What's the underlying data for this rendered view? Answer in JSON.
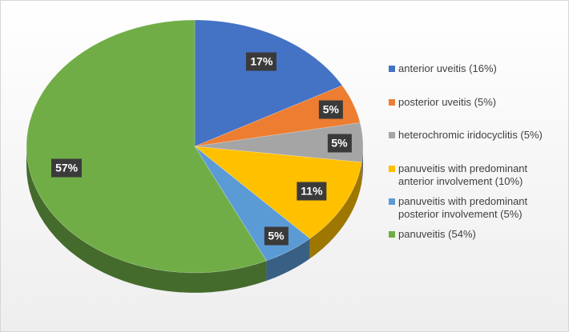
{
  "chart_data": {
    "type": "pie",
    "style": "3d",
    "title": "",
    "legend_position": "right",
    "categories": [
      "anterior uveitis (16%)",
      "posterior uveitis (5%)",
      "heterochromic iridocyclitis (5%)",
      "panuveitis with predominant anterior involvement (10%)",
      "panuveitis with predominant posterior involvement (5%)",
      "panuveitis (54%)"
    ],
    "values": [
      17,
      5,
      5,
      11,
      5,
      57
    ],
    "labels": [
      "17%",
      "5%",
      "5%",
      "11%",
      "5%",
      "57%"
    ],
    "colors": [
      "#4472C4",
      "#ED7D31",
      "#A5A5A5",
      "#FFC000",
      "#5B9BD5",
      "#70AD47"
    ],
    "legend": [
      {
        "lines": [
          "anterior uveitis (16%)"
        ]
      },
      {
        "lines": [
          "posterior uveitis (5%)"
        ]
      },
      {
        "lines": [
          "heterochromic iridocyclitis (5%)"
        ]
      },
      {
        "lines": [
          "panuveitis with predominant",
          "anterior involvement (10%)"
        ]
      },
      {
        "lines": [
          "panuveitis with predominant",
          "posterior involvement (5%)"
        ]
      },
      {
        "lines": [
          "panuveitis (54%)"
        ]
      }
    ]
  }
}
